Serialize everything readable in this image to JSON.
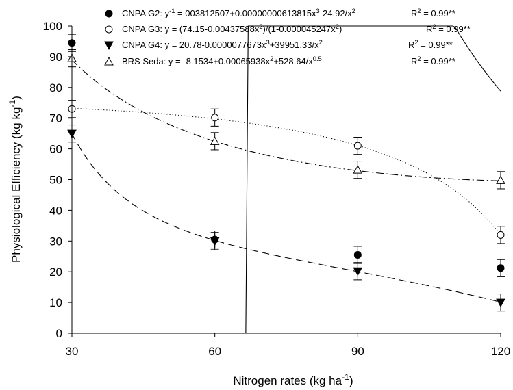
{
  "chart_data": {
    "type": "scatter",
    "x_values": [
      30,
      60,
      90,
      120
    ],
    "xticks": [
      "30",
      "60",
      "90",
      "120"
    ],
    "yticks": [
      "0",
      "10",
      "20",
      "30",
      "40",
      "50",
      "60",
      "70",
      "80",
      "90",
      "100"
    ],
    "xlim": [
      30,
      120
    ],
    "ylim": [
      0,
      100
    ],
    "xlabel": {
      "main": "Nitrogen rates (kg ha",
      "sup": "-1",
      "tail": ")"
    },
    "ylabel": {
      "main": "Physiological Efficiency (kg kg",
      "sup": "-1",
      "tail": ")"
    },
    "grid": false,
    "legend_position": "top",
    "series": [
      {
        "name": "CNPA G2",
        "marker": "filled-circle",
        "line_style": "solid",
        "y": [
          94.5,
          30.5,
          25.5,
          21.2
        ],
        "err": [
          2.8,
          2.8,
          2.8,
          2.8
        ],
        "legend_parts": [
          {
            "t": "CNPA G2: y"
          },
          {
            "t": "-1",
            "sup": true
          },
          {
            "t": " = 003812507+0.00000000613815x"
          },
          {
            "t": "3",
            "sup": true
          },
          {
            "t": "-24.92/x"
          },
          {
            "t": "2",
            "sup": true
          }
        ],
        "r2_parts": [
          {
            "t": "R"
          },
          {
            "t": "2",
            "sup": true
          },
          {
            "t": " = 0.99**"
          }
        ]
      },
      {
        "name": "CNPA G3",
        "marker": "open-circle",
        "line_style": "dotted",
        "y": [
          73,
          70.2,
          61,
          32
        ],
        "err": [
          2.8,
          2.8,
          2.8,
          2.8
        ],
        "legend_parts": [
          {
            "t": "CNPA G3: y = (74.15-0.00437588x"
          },
          {
            "t": "2",
            "sup": true
          },
          {
            "t": ")/(1-0.000045247x"
          },
          {
            "t": "2",
            "sup": true
          },
          {
            "t": ")"
          }
        ],
        "r2_parts": [
          {
            "t": "R"
          },
          {
            "t": "2",
            "sup": true
          },
          {
            "t": " = 0.99**"
          }
        ]
      },
      {
        "name": "CNPA G4",
        "marker": "filled-triangle-down",
        "line_style": "dashed",
        "y": [
          65,
          30,
          20.2,
          10
        ],
        "err": [
          2.8,
          2.8,
          2.8,
          2.8
        ],
        "legend_parts": [
          {
            "t": "CNPA G4: y = 20.78-0.0000077673x"
          },
          {
            "t": "3",
            "sup": true
          },
          {
            "t": "+39951.33/x"
          },
          {
            "t": "2",
            "sup": true
          }
        ],
        "r2_parts": [
          {
            "t": "R"
          },
          {
            "t": "2",
            "sup": true
          },
          {
            "t": " = 0.99**"
          }
        ]
      },
      {
        "name": "BRS Seda",
        "marker": "open-triangle-up",
        "line_style": "dash-dot",
        "y": [
          89.5,
          62.5,
          53.2,
          49.8
        ],
        "err": [
          2.8,
          2.8,
          2.8,
          2.8
        ],
        "legend_parts": [
          {
            "t": "BRS Seda: y = -8.1534+0.00065938x"
          },
          {
            "t": "2",
            "sup": true
          },
          {
            "t": "+528.64/x"
          },
          {
            "t": "0.5",
            "sup": true
          }
        ],
        "r2_parts": [
          {
            "t": "R"
          },
          {
            "t": "2",
            "sup": true
          },
          {
            "t": " = 0.99**"
          }
        ]
      }
    ]
  }
}
